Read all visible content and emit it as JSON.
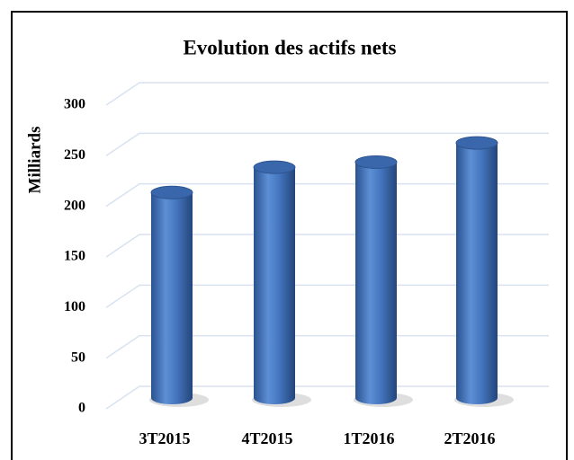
{
  "chart_data": {
    "type": "bar",
    "title": "Evolution des actifs nets",
    "y_label": "Milliards",
    "categories": [
      "3T2015",
      "4T2015",
      "1T2016",
      "2T2016"
    ],
    "values": [
      203,
      228,
      233,
      252
    ],
    "color": "#3f6fb5",
    "ylim": [
      0,
      300
    ],
    "yticks": [
      0,
      50,
      100,
      150,
      200,
      250,
      300
    ],
    "grid": true
  }
}
